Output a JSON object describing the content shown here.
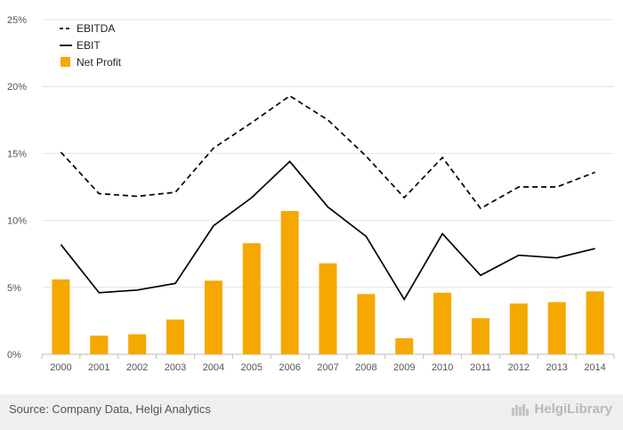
{
  "chart_data": {
    "type": "bar+line",
    "categories": [
      "2000",
      "2001",
      "2002",
      "2003",
      "2004",
      "2005",
      "2006",
      "2007",
      "2008",
      "2009",
      "2010",
      "2011",
      "2012",
      "2013",
      "2014"
    ],
    "y_ticks": [
      "0%",
      "5%",
      "10%",
      "15%",
      "20%",
      "25%"
    ],
    "ylim": [
      0,
      25
    ],
    "series": [
      {
        "name": "EBITDA",
        "kind": "line",
        "style": "dashed",
        "color": "#000000",
        "values": [
          15.1,
          12.0,
          11.8,
          12.1,
          15.4,
          17.3,
          19.3,
          17.5,
          14.8,
          11.7,
          14.7,
          10.9,
          12.5,
          12.5,
          13.6
        ]
      },
      {
        "name": "EBIT",
        "kind": "line",
        "style": "solid",
        "color": "#000000",
        "values": [
          8.2,
          4.6,
          4.8,
          5.3,
          9.6,
          11.7,
          14.4,
          11.0,
          8.8,
          4.1,
          9.0,
          5.9,
          7.4,
          7.2,
          7.9
        ]
      },
      {
        "name": "Net Profit",
        "kind": "bar",
        "color": "#f5a800",
        "values": [
          5.6,
          1.4,
          1.5,
          2.6,
          5.5,
          8.3,
          10.7,
          6.8,
          4.5,
          1.2,
          4.6,
          2.7,
          3.8,
          3.9,
          4.7
        ]
      }
    ],
    "legend": [
      "EBITDA",
      "EBIT",
      "Net Profit"
    ],
    "legend_position": "top-left",
    "grid": true
  },
  "footer": {
    "source": "Source: Company Data, Helgi Analytics",
    "brand": "HelgiLibrary"
  }
}
